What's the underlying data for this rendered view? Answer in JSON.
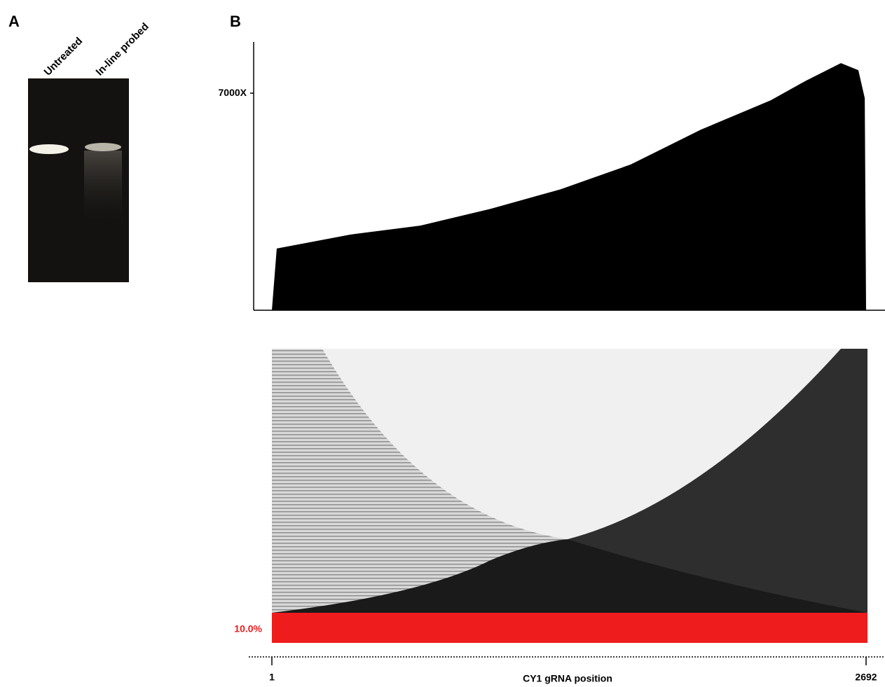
{
  "panels": {
    "a": {
      "label": "A",
      "lanes": [
        "Untreated",
        "In-line probed"
      ]
    },
    "b": {
      "label": "B",
      "mismatch_label": "10.0%"
    }
  },
  "chart_data": {
    "type": "area",
    "color": "#000000",
    "x": [
      1,
      23,
      356,
      674,
      991,
      1308,
      1626,
      1943,
      2260,
      2419,
      2578,
      2657,
      2686,
      2692
    ],
    "values": [
      0,
      1990,
      2440,
      2730,
      3270,
      3900,
      4700,
      5820,
      6770,
      7400,
      7970,
      7740,
      6840,
      0
    ],
    "xlim": [
      1,
      2692
    ],
    "xticks": [
      1,
      2692
    ],
    "xlabel": "CY1 gRNA position",
    "ylim": [
      0,
      8650
    ],
    "yticks": [
      {
        "value": 7000,
        "label": "7000X"
      }
    ]
  }
}
